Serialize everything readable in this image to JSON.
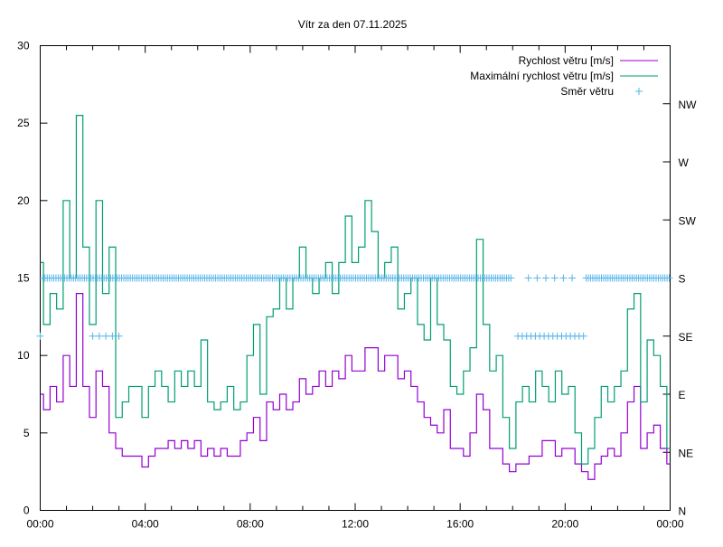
{
  "chart_data": {
    "type": "line",
    "title": "Vítr za den 07.11.2025",
    "xlabel": "",
    "ylabel": "",
    "xlim": [
      0,
      24
    ],
    "ylim": [
      0,
      30
    ],
    "y2lim": [
      0,
      360
    ],
    "x_ticks": [
      "00:00",
      "04:00",
      "08:00",
      "12:00",
      "16:00",
      "20:00",
      "00:00"
    ],
    "y_ticks": [
      "0",
      "5",
      "10",
      "15",
      "20",
      "25",
      "30"
    ],
    "y2_ticks": [
      "N",
      "NE",
      "E",
      "SE",
      "S",
      "SW",
      "W",
      "NW"
    ],
    "legend_position": "top-right",
    "x_step_hours": 0.25,
    "series": [
      {
        "name": "Rychlost větru [m/s]",
        "color": "#9400d3",
        "style": "line",
        "values": [
          7.5,
          6.5,
          8,
          7,
          10,
          8,
          14,
          8,
          6,
          9,
          8,
          5,
          4,
          3.5,
          3.5,
          3.5,
          2.8,
          3.5,
          4,
          4,
          4.5,
          4,
          4.5,
          4,
          4.5,
          3.5,
          4,
          3.5,
          4,
          3.5,
          3.5,
          4.5,
          5,
          6,
          4.5,
          7,
          6.5,
          7.5,
          6.5,
          7,
          8.5,
          7.5,
          8,
          9,
          8,
          9,
          8.5,
          10,
          9,
          9,
          10.5,
          10.5,
          9,
          10,
          10,
          8.5,
          9,
          8,
          7,
          6,
          5.5,
          5,
          6.5,
          4,
          4,
          3.5,
          5,
          7.5,
          6.5,
          4,
          4,
          3,
          2.5,
          3,
          3,
          3.5,
          3.5,
          4.5,
          4.5,
          3.5,
          4,
          4,
          3,
          2.5,
          2,
          3,
          3.5,
          4,
          3.5,
          5,
          7,
          8,
          4,
          5,
          5.5,
          4,
          3
        ]
      },
      {
        "name": "Maximální rychlost větru [m/s]",
        "color": "#009e73",
        "style": "line",
        "values": [
          16,
          12,
          14,
          13,
          20,
          15,
          25.5,
          17,
          12,
          20,
          14,
          17,
          6,
          7,
          8,
          8,
          6,
          8,
          9,
          8,
          7,
          9,
          8,
          9,
          8,
          11,
          7,
          6.5,
          7,
          8,
          6.5,
          7,
          10,
          12,
          7.5,
          12.5,
          13,
          15,
          13,
          15,
          17,
          15,
          14,
          15,
          16,
          14,
          16,
          19,
          16,
          17,
          20,
          18,
          15,
          16,
          17,
          13,
          14,
          15,
          12,
          11,
          15,
          12,
          11,
          8,
          7.5,
          9,
          10.5,
          17.5,
          12,
          9,
          10,
          6,
          4,
          7,
          8,
          7,
          9,
          8,
          7,
          9,
          7.5,
          8,
          5,
          3,
          4,
          6,
          8,
          7,
          8,
          9,
          13,
          14,
          7,
          11,
          10,
          8,
          4
        ]
      },
      {
        "name": "Směr větru",
        "color": "#56b4e9",
        "style": "points",
        "axis": "y2",
        "runs": [
          {
            "deg": 135,
            "from": 0.0,
            "to": 0.05,
            "step_min": 10
          },
          {
            "deg": 180,
            "from": 0.1,
            "to": 18.0,
            "step_min": 5
          },
          {
            "deg": 135,
            "from": 2.0,
            "to": 3.0,
            "step_min": 15
          },
          {
            "deg": 135,
            "from": 18.2,
            "to": 20.7,
            "step_min": 10
          },
          {
            "deg": 180,
            "from": 18.6,
            "to": 20.4,
            "step_min": 20
          },
          {
            "deg": 180,
            "from": 20.8,
            "to": 24.0,
            "step_min": 5
          }
        ]
      }
    ]
  }
}
